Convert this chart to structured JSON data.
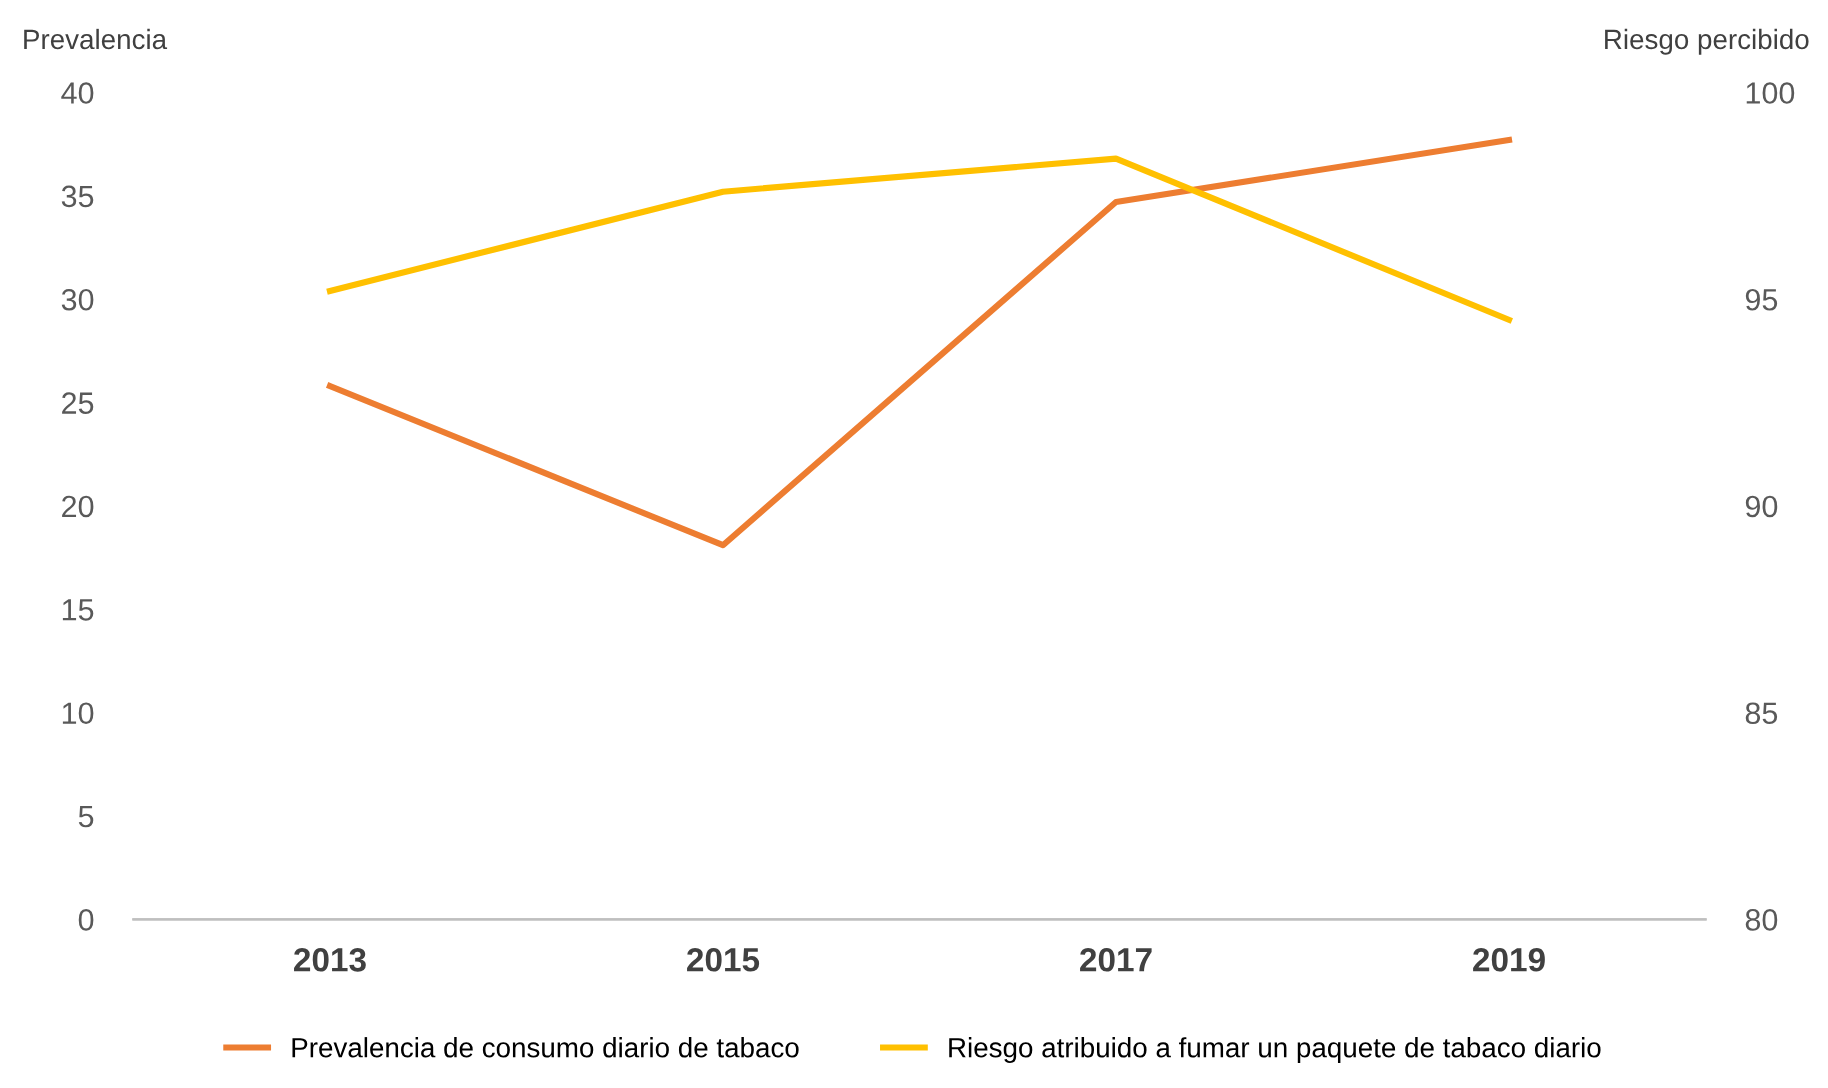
{
  "chart_data": {
    "type": "line",
    "categories": [
      "2013",
      "2015",
      "2017",
      "2019"
    ],
    "series": [
      {
        "name": "Prevalencia de consumo diario de tabaco",
        "color": "#ed7d31",
        "values": [
          25.8,
          18.1,
          34.7,
          37.7
        ]
      },
      {
        "name": "Riesgo atribuido a fumar un paquete de tabaco diario",
        "color": "#ffc000",
        "axis": "y2",
        "values": [
          95.2,
          97.6,
          98.4,
          94.5
        ]
      }
    ],
    "ylabel": "Prevalencia",
    "y2label": "Riesgo percibido",
    "ylim": [
      0,
      40
    ],
    "yticks": [
      0,
      5,
      10,
      15,
      20,
      25,
      30,
      35,
      40
    ],
    "y2lim": [
      80,
      100
    ],
    "y2ticks": [
      80,
      85,
      90,
      95,
      100
    ],
    "grid": false,
    "legend": "bottom",
    "marker": "none",
    "line_style": "solid"
  }
}
